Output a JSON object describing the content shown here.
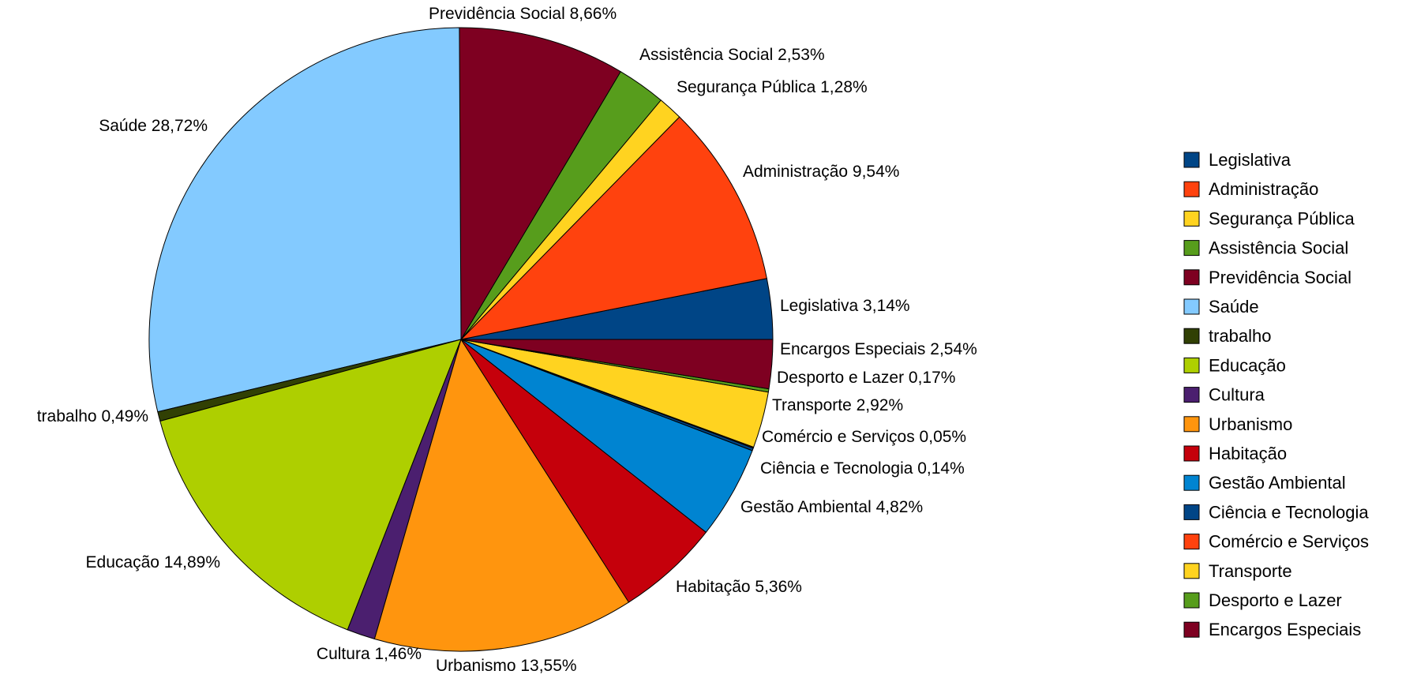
{
  "chart_data": {
    "type": "pie",
    "title": "",
    "legend_position": "right",
    "slices": [
      {
        "name": "Legislativa",
        "value": 3.14,
        "label": "Legislativa 3,14%",
        "color": "#004586"
      },
      {
        "name": "Administração",
        "value": 9.54,
        "label": "Administração 9,54%",
        "color": "#ff420e"
      },
      {
        "name": "Segurança Pública",
        "value": 1.28,
        "label": "Segurança Pública 1,28%",
        "color": "#ffd320"
      },
      {
        "name": "Assistência Social",
        "value": 2.53,
        "label": "Assistência Social 2,53%",
        "color": "#579d1c"
      },
      {
        "name": "Previdência Social",
        "value": 8.66,
        "label": "Previdência Social 8,66%",
        "color": "#7e0021"
      },
      {
        "name": "Saúde",
        "value": 28.72,
        "label": "Saúde 28,72%",
        "color": "#83caff"
      },
      {
        "name": "trabalho",
        "value": 0.49,
        "label": "trabalho 0,49%",
        "color": "#314004"
      },
      {
        "name": "Educação",
        "value": 14.89,
        "label": "Educação 14,89%",
        "color": "#aecf00"
      },
      {
        "name": "Cultura",
        "value": 1.46,
        "label": "Cultura 1,46%",
        "color": "#4b1f6f"
      },
      {
        "name": "Urbanismo",
        "value": 13.55,
        "label": "Urbanismo 13,55%",
        "color": "#ff950e"
      },
      {
        "name": "Habitação",
        "value": 5.36,
        "label": "Habitação 5,36%",
        "color": "#c5000b"
      },
      {
        "name": "Gestão Ambiental",
        "value": 4.82,
        "label": "Gestão Ambiental 4,82%",
        "color": "#0084d1"
      },
      {
        "name": "Ciência e Tecnologia",
        "value": 0.14,
        "label": "Ciência e Tecnologia 0,14%",
        "color": "#004586"
      },
      {
        "name": "Comércio e Serviços",
        "value": 0.05,
        "label": "Comércio e Serviços 0,05%",
        "color": "#ff420e"
      },
      {
        "name": "Transporte",
        "value": 2.92,
        "label": "Transporte 2,92%",
        "color": "#ffd320"
      },
      {
        "name": "Desporto e Lazer",
        "value": 0.17,
        "label": "Desporto e Lazer 0,17%",
        "color": "#579d1c"
      },
      {
        "name": "Encargos Especiais",
        "value": 2.54,
        "label": "Encargos Especiais 2,54%",
        "color": "#7e0021"
      }
    ]
  }
}
